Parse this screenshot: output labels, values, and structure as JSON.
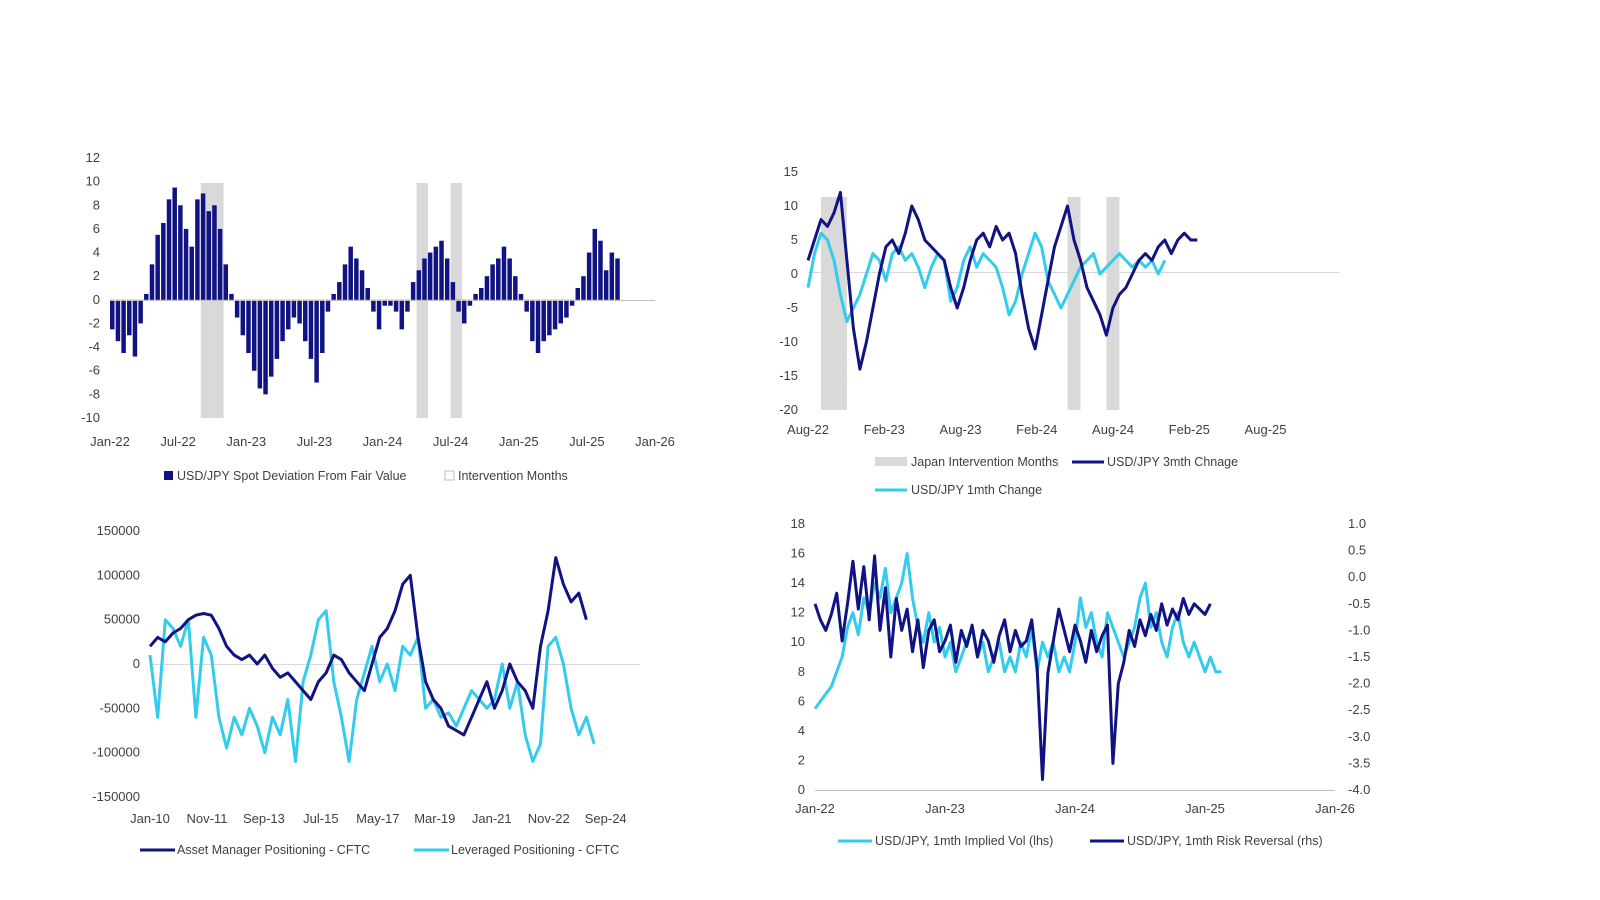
{
  "colors": {
    "navy": "#111382",
    "cyan": "#33ccec",
    "band": "#d9d9d9",
    "axis": "#bfbfbf",
    "text": "#404040"
  },
  "chart_data": [
    {
      "id": "c1",
      "type": "bar",
      "title": "",
      "ylim": [
        -10,
        12
      ],
      "y_ticks": [
        "12",
        "10",
        "8",
        "6",
        "4",
        "2",
        "0",
        "-2",
        "-4",
        "-6",
        "-8",
        "-10"
      ],
      "x_ticks": [
        "Jan-22",
        "Jul-22",
        "Jan-23",
        "Jul-23",
        "Jan-24",
        "Jul-24",
        "Jan-25",
        "Jul-25",
        "Jan-26"
      ],
      "x_range": [
        "2022-01",
        "2026-01"
      ],
      "shaded_ranges": [
        [
          "2022-09",
          "2022-11"
        ],
        [
          "2024-04",
          "2024-05"
        ],
        [
          "2024-07",
          "2024-08"
        ]
      ],
      "series": [
        {
          "name": "USD/JPY Spot Deviation From Fair Value",
          "x_start": "2022-01",
          "step": "half-month",
          "values": [
            -2.5,
            -3.5,
            -4.5,
            -3,
            -4.8,
            -2,
            0.5,
            3,
            5.5,
            6.5,
            8.5,
            9.5,
            8,
            6,
            4.5,
            8.5,
            9,
            7.5,
            8,
            6,
            3,
            0.5,
            -1.5,
            -3,
            -4.5,
            -6,
            -7.5,
            -8,
            -6.5,
            -5,
            -3.5,
            -2.5,
            -1.5,
            -2,
            -3.5,
            -5,
            -7,
            -4.5,
            -1,
            0.5,
            1.5,
            3,
            4.5,
            3.5,
            2.5,
            1,
            -1,
            -2.5,
            -0.5,
            -0.5,
            -1,
            -2.5,
            -1,
            1.5,
            2.5,
            3.5,
            4,
            4.5,
            5,
            3.5,
            1.5,
            -1,
            -2,
            -0.5,
            0.5,
            1,
            2,
            3,
            3.5,
            4.5,
            3.5,
            2,
            0.5,
            -1,
            -3.5,
            -4.5,
            -3.5,
            -3,
            -2.5,
            -2,
            -1.5,
            -0.5,
            1,
            2,
            4,
            6,
            5,
            2.5,
            4,
            3.5
          ]
        },
        {
          "name": "Intervention Months",
          "type": "band"
        }
      ],
      "legend": "bottom"
    },
    {
      "id": "c2",
      "type": "line",
      "title": "",
      "ylim": [
        -20,
        15
      ],
      "y_ticks": [
        "15",
        "10",
        "5",
        "0",
        "-5",
        "-10",
        "-15",
        "-20"
      ],
      "x_ticks": [
        "Aug-22",
        "Feb-23",
        "Aug-23",
        "Feb-24",
        "Aug-24",
        "Feb-25",
        "Aug-25"
      ],
      "x_range": [
        "2022-08",
        "2026-01"
      ],
      "shaded_ranges": [
        [
          "2022-09",
          "2022-11"
        ],
        [
          "2024-04",
          "2024-05"
        ],
        [
          "2024-07",
          "2024-08"
        ]
      ],
      "series": [
        {
          "name": "Japan Intervention Months",
          "type": "band"
        },
        {
          "name": "USD/JPY 3mth Chnage",
          "x_start": "2022-08",
          "step": "half-month",
          "values": [
            2,
            5,
            8,
            7,
            9,
            12,
            2,
            -8,
            -14,
            -10,
            -5,
            0,
            4,
            5,
            3,
            6,
            10,
            8,
            5,
            4,
            3,
            2,
            -2,
            -5,
            -2,
            2,
            5,
            6,
            4,
            7,
            5,
            6,
            3,
            -3,
            -8,
            -11,
            -6,
            -1,
            4,
            7,
            10,
            5,
            2,
            -2,
            -4,
            -6,
            -9,
            -5,
            -3,
            -2,
            0,
            2,
            3,
            2,
            4,
            5,
            3,
            5,
            6,
            5,
            5
          ]
        },
        {
          "name": "USD/JPY 1mth Change",
          "x_start": "2022-08",
          "step": "half-month",
          "values": [
            -2,
            3,
            6,
            5,
            2,
            -3,
            -7,
            -5,
            -3,
            0,
            3,
            2,
            -1,
            3,
            4,
            2,
            3,
            1,
            -2,
            1,
            3,
            2,
            -4,
            -2,
            2,
            4,
            1,
            3,
            2,
            1,
            -2,
            -6,
            -4,
            0,
            3,
            6,
            4,
            -1,
            -3,
            -5,
            -3,
            -1,
            1,
            2,
            3,
            0,
            1,
            2,
            3,
            2,
            1,
            2,
            1,
            2,
            0,
            2
          ]
        }
      ],
      "legend": "bottom"
    },
    {
      "id": "c3",
      "type": "line",
      "title": "",
      "ylim": [
        -150000,
        150000
      ],
      "y_ticks": [
        "150000",
        "100000",
        "50000",
        "0",
        "-50000",
        "-100000",
        "-150000"
      ],
      "x_ticks": [
        "Jan-10",
        "Nov-11",
        "Sep-13",
        "Jul-15",
        "May-17",
        "Mar-19",
        "Jan-21",
        "Nov-22",
        "Sep-24"
      ],
      "x_range": [
        "2010-01",
        "2026-01"
      ],
      "series": [
        {
          "name": "Asset Manager Positioning - CFTC",
          "x_start": "2010-01",
          "step": "quarter",
          "values": [
            20000,
            30000,
            25000,
            35000,
            40000,
            50000,
            55000,
            57000,
            55000,
            40000,
            20000,
            10000,
            5000,
            10000,
            0,
            10000,
            -5000,
            -15000,
            -10000,
            -20000,
            -30000,
            -40000,
            -20000,
            -10000,
            10000,
            5000,
            -10000,
            -20000,
            -30000,
            0,
            30000,
            40000,
            60000,
            90000,
            100000,
            30000,
            -20000,
            -40000,
            -50000,
            -70000,
            -75000,
            -80000,
            -60000,
            -40000,
            -20000,
            -50000,
            -30000,
            0,
            -20000,
            -30000,
            -50000,
            20000,
            60000,
            120000,
            90000,
            70000,
            80000,
            50000
          ]
        },
        {
          "name": "Leveraged Positioning - CFTC",
          "x_start": "2010-01",
          "step": "quarter",
          "values": [
            10000,
            -60000,
            50000,
            40000,
            20000,
            50000,
            -60000,
            30000,
            10000,
            -60000,
            -95000,
            -60000,
            -80000,
            -50000,
            -70000,
            -100000,
            -60000,
            -80000,
            -40000,
            -110000,
            -20000,
            10000,
            50000,
            60000,
            -20000,
            -60000,
            -110000,
            -40000,
            -10000,
            20000,
            -20000,
            0,
            -30000,
            20000,
            10000,
            30000,
            -50000,
            -40000,
            -60000,
            -55000,
            -70000,
            -50000,
            -30000,
            -40000,
            -50000,
            -40000,
            0,
            -50000,
            -20000,
            -80000,
            -110000,
            -90000,
            20000,
            30000,
            0,
            -50000,
            -80000,
            -60000,
            -90000
          ]
        }
      ],
      "legend": "bottom"
    },
    {
      "id": "c4",
      "type": "line",
      "title": "",
      "ylim": [
        0,
        18
      ],
      "ylim_right": [
        -4.0,
        1.0
      ],
      "y_ticks": [
        "18",
        "16",
        "14",
        "12",
        "10",
        "8",
        "6",
        "4",
        "2",
        "0"
      ],
      "y_ticks_right": [
        "1.0",
        "0.5",
        "0.0",
        "-0.5",
        "-1.0",
        "-1.5",
        "-2.0",
        "-2.5",
        "-3.0",
        "-3.5",
        "-4.0"
      ],
      "x_ticks": [
        "Jan-22",
        "Jan-23",
        "Jan-24",
        "Jan-25",
        "Jan-26"
      ],
      "x_range": [
        "2022-01",
        "2026-01"
      ],
      "series": [
        {
          "name": "USD/JPY, 1mth Implied Vol (lhs)",
          "axis": "left",
          "x_start": "2022-01",
          "step": "half-month",
          "values": [
            5.5,
            6,
            6.5,
            7,
            8,
            9,
            11,
            12,
            10.5,
            13,
            12,
            14,
            13,
            15,
            12,
            13,
            14,
            16,
            13,
            11,
            10,
            12,
            10,
            11,
            9,
            10,
            8,
            9,
            10,
            11,
            9,
            10,
            8,
            9,
            10,
            8,
            9,
            8,
            10,
            9,
            11,
            8,
            10,
            9,
            10,
            8,
            9,
            8,
            10,
            13,
            11,
            12,
            10,
            9,
            12,
            11,
            10,
            9,
            10,
            11,
            13,
            14,
            11,
            12,
            10,
            9,
            11,
            12,
            10,
            9,
            10,
            9,
            8,
            9,
            8,
            8
          ]
        },
        {
          "name": "USD/JPY, 1mth Risk Reversal (rhs)",
          "axis": "right",
          "x_start": "2022-01",
          "step": "half-month",
          "values": [
            -0.5,
            -0.8,
            -1.0,
            -0.7,
            -0.3,
            -1.2,
            -0.5,
            0.3,
            -0.6,
            0.2,
            -0.8,
            0.4,
            -1.0,
            -0.2,
            -1.5,
            -0.4,
            -1.0,
            -0.6,
            -1.4,
            -0.8,
            -1.7,
            -1.0,
            -0.8,
            -1.4,
            -1.2,
            -0.9,
            -1.6,
            -1.0,
            -1.3,
            -0.9,
            -1.5,
            -1.0,
            -1.2,
            -1.6,
            -1.1,
            -0.8,
            -1.4,
            -1.0,
            -1.3,
            -1.2,
            -0.8,
            -1.7,
            -3.8,
            -1.8,
            -1.2,
            -0.6,
            -1.0,
            -1.4,
            -0.9,
            -1.2,
            -1.6,
            -1.0,
            -1.4,
            -1.1,
            -0.9,
            -3.5,
            -2.0,
            -1.6,
            -1.0,
            -1.3,
            -0.8,
            -1.1,
            -0.7,
            -1.0,
            -0.5,
            -0.9,
            -0.6,
            -0.8,
            -0.4,
            -0.7,
            -0.5,
            -0.6,
            -0.7,
            -0.5
          ]
        }
      ],
      "legend": "bottom"
    }
  ]
}
